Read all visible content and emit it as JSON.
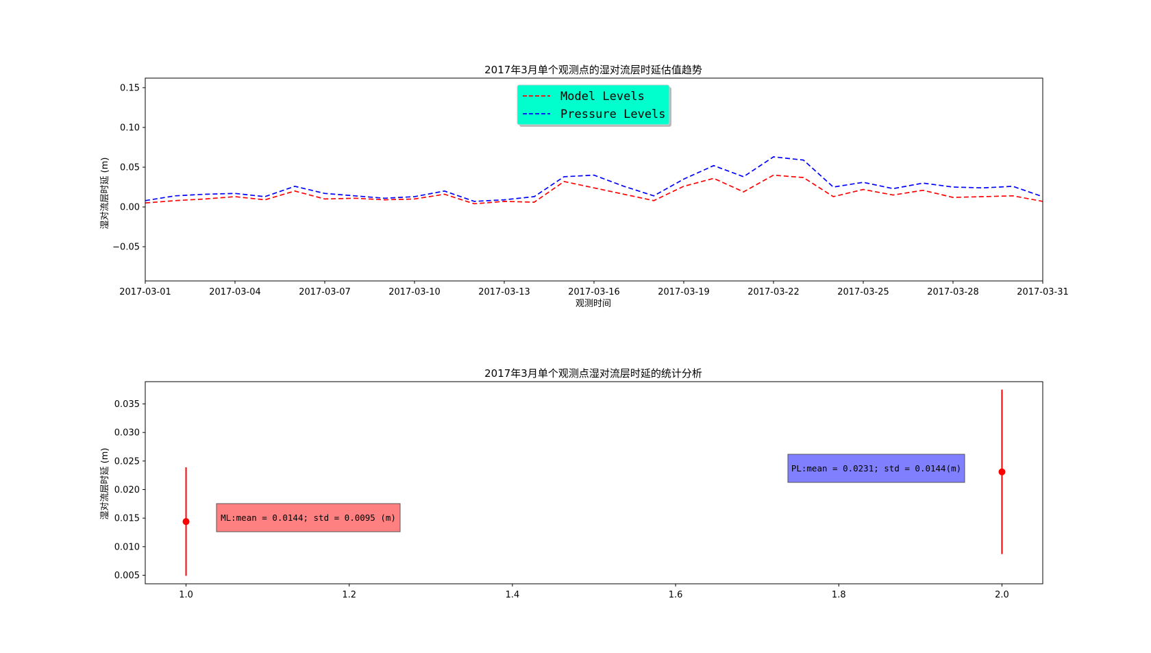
{
  "chart_data": [
    {
      "type": "line",
      "title": "2017年3月单个观测点的湿对流层时延估值趋势",
      "xlabel": "观测时间",
      "ylabel": "湿对流层时延 (m)",
      "x_tick_labels": [
        "2017-03-01",
        "2017-03-04",
        "2017-03-07",
        "2017-03-10",
        "2017-03-13",
        "2017-03-16",
        "2017-03-19",
        "2017-03-22",
        "2017-03-25",
        "2017-03-28",
        "2017-03-31"
      ],
      "y_tick_labels": [
        "0.15",
        "0.10",
        "0.05",
        "0.00",
        "−0.05"
      ],
      "y_ticks": [
        0.15,
        0.1,
        0.05,
        0.0,
        -0.05
      ],
      "xlim": [
        "2017-03-01",
        "2017-03-31"
      ],
      "ylim": [
        -0.093,
        0.162
      ],
      "grid": false,
      "legend_position": "upper-center",
      "legend_facecolor": "#00ffcc",
      "x": [
        "2017-03-01",
        "2017-03-02",
        "2017-03-03",
        "2017-03-04",
        "2017-03-05",
        "2017-03-06",
        "2017-03-07",
        "2017-03-08",
        "2017-03-09",
        "2017-03-10",
        "2017-03-11",
        "2017-03-12",
        "2017-03-13",
        "2017-03-14",
        "2017-03-15",
        "2017-03-16",
        "2017-03-17",
        "2017-03-18",
        "2017-03-19",
        "2017-03-20",
        "2017-03-21",
        "2017-03-22",
        "2017-03-23",
        "2017-03-24",
        "2017-03-25",
        "2017-03-26",
        "2017-03-27",
        "2017-03-28",
        "2017-03-29",
        "2017-03-30",
        "2017-03-31"
      ],
      "series": [
        {
          "name": "Model Levels",
          "color": "#ff0000",
          "line_style": "dashed",
          "values": [
            0.005,
            0.008,
            0.01,
            0.013,
            0.009,
            0.02,
            0.01,
            0.011,
            0.009,
            0.01,
            0.016,
            0.004,
            0.007,
            0.006,
            0.032,
            0.024,
            0.016,
            0.008,
            0.026,
            0.036,
            0.019,
            0.04,
            0.037,
            0.013,
            0.022,
            0.015,
            0.021,
            0.012,
            0.013,
            0.014,
            0.007
          ]
        },
        {
          "name": "Pressure Levels",
          "color": "#0000ff",
          "line_style": "dashed",
          "values": [
            0.008,
            0.014,
            0.016,
            0.017,
            0.013,
            0.026,
            0.017,
            0.014,
            0.011,
            0.013,
            0.02,
            0.007,
            0.009,
            0.013,
            0.038,
            0.04,
            0.026,
            0.014,
            0.035,
            0.052,
            0.038,
            0.063,
            0.059,
            0.025,
            0.031,
            0.023,
            0.03,
            0.025,
            0.024,
            0.026,
            0.013
          ]
        }
      ]
    },
    {
      "type": "errorbar",
      "title": "2017年3月单个观测点湿对流层时延的统计分析",
      "xlabel": "",
      "ylabel": "湿对流层时延 (m)",
      "x_tick_labels": [
        "1.0",
        "1.2",
        "1.4",
        "1.6",
        "1.8",
        "2.0"
      ],
      "x_ticks": [
        1.0,
        1.2,
        1.4,
        1.6,
        1.8,
        2.0
      ],
      "y_tick_labels": [
        "0.035",
        "0.030",
        "0.025",
        "0.020",
        "0.015",
        "0.010",
        "0.005"
      ],
      "y_ticks": [
        0.035,
        0.03,
        0.025,
        0.02,
        0.015,
        0.01,
        0.005
      ],
      "xlim": [
        0.95,
        2.05
      ],
      "ylim": [
        0.0035,
        0.0389
      ],
      "grid": false,
      "points": [
        {
          "x": 1.0,
          "mean": 0.0144,
          "std": 0.0095,
          "color": "#ff0000"
        },
        {
          "x": 2.0,
          "mean": 0.0231,
          "std": 0.0144,
          "color": "#ff0000"
        }
      ],
      "annotations": [
        {
          "text": "ML:mean = 0.0144; std = 0.0095 (m)",
          "x": 1.15,
          "y": 0.0145,
          "facecolor": "#ff8080"
        },
        {
          "text": "PL:mean = 0.0231; std = 0.0144(m)",
          "x": 1.85,
          "y": 0.0231,
          "facecolor": "#8080ff"
        }
      ]
    }
  ]
}
